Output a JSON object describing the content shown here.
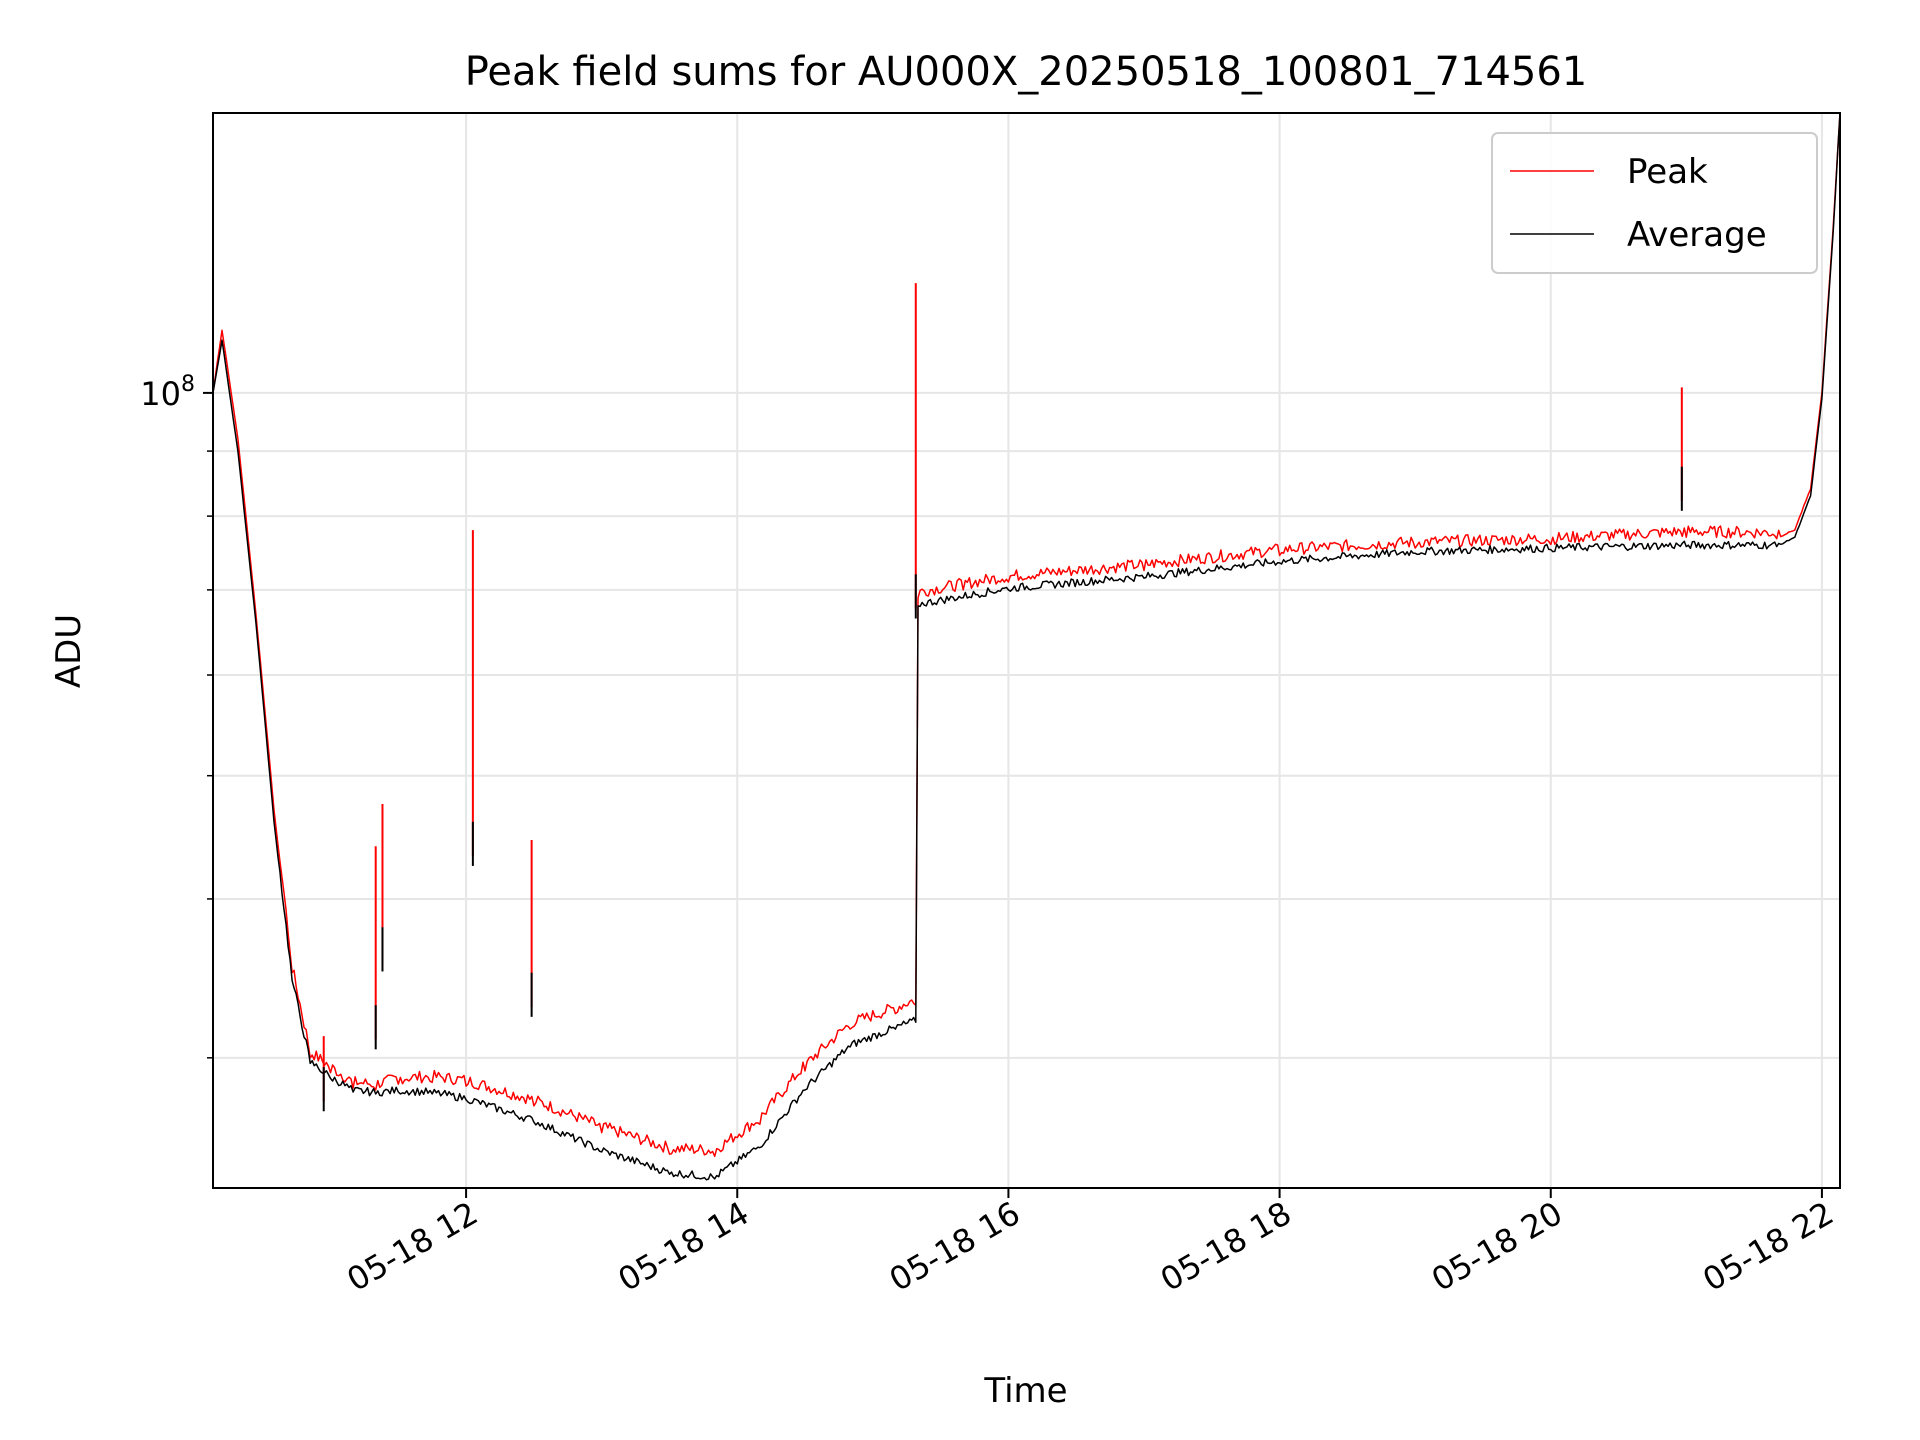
{
  "chart_data": {
    "type": "line",
    "title": "Peak field sums for AU000X_20250518_100801_714561",
    "xlabel": "Time",
    "ylabel": "ADU",
    "yscale": "log",
    "xlim": [
      "2025-05-18 10:08",
      "2025-05-18 22:08"
    ],
    "ylim": [
      23700000,
      166000000
    ],
    "x_ticks": [
      {
        "value": "2025-05-18 12:00",
        "label": "05-18 12"
      },
      {
        "value": "2025-05-18 14:00",
        "label": "05-18 14"
      },
      {
        "value": "2025-05-18 16:00",
        "label": "05-18 16"
      },
      {
        "value": "2025-05-18 18:00",
        "label": "05-18 18"
      },
      {
        "value": "2025-05-18 20:00",
        "label": "05-18 20"
      },
      {
        "value": "2025-05-18 22:00",
        "label": "05-18 22"
      }
    ],
    "y_ticks": [
      {
        "value": 100000000,
        "base": "10",
        "exponent": "8"
      }
    ],
    "y_minor_ticks": [
      30000000,
      40000000,
      50000000,
      60000000,
      70000000,
      80000000,
      90000000,
      200000000
    ],
    "grid": true,
    "legend": "top-right",
    "series": [
      {
        "name": "Peak",
        "color": "#ff0000",
        "x": [
          "2025-05-18 10:08",
          "2025-05-18 10:12",
          "2025-05-18 10:19",
          "2025-05-18 10:27",
          "2025-05-18 10:35",
          "2025-05-18 10:43",
          "2025-05-18 10:51",
          "2025-05-18 11:00",
          "2025-05-18 11:10",
          "2025-05-18 11:20",
          "2025-05-18 11:30",
          "2025-05-18 11:45",
          "2025-05-18 12:00",
          "2025-05-18 12:30",
          "2025-05-18 13:00",
          "2025-05-18 13:30",
          "2025-05-18 13:50",
          "2025-05-18 14:10",
          "2025-05-18 14:30",
          "2025-05-18 14:50",
          "2025-05-18 15:10",
          "2025-05-18 15:19",
          "2025-05-18 15:20",
          "2025-05-18 15:40",
          "2025-05-18 16:00",
          "2025-05-18 17:00",
          "2025-05-18 18:00",
          "2025-05-18 19:00",
          "2025-05-18 20:00",
          "2025-05-18 21:00",
          "2025-05-18 21:40",
          "2025-05-18 21:48",
          "2025-05-18 21:55",
          "2025-05-18 22:00",
          "2025-05-18 22:05",
          "2025-05-18 22:08"
        ],
        "y": [
          100000000,
          112000000,
          92000000,
          67000000,
          47000000,
          35000000,
          30000000,
          29200000,
          28400000,
          28300000,
          28600000,
          28700000,
          28500000,
          27500000,
          26200000,
          25200000,
          25100000,
          26600000,
          29300000,
          31600000,
          32500000,
          33000000,
          69000000,
          70000000,
          71000000,
          72500000,
          74500000,
          75500000,
          76000000,
          77000000,
          76800000,
          78000000,
          84000000,
          100000000,
          135000000,
          166000000
        ]
      },
      {
        "name": "Average",
        "color": "#000000",
        "x": [
          "2025-05-18 10:08",
          "2025-05-18 10:12",
          "2025-05-18 10:19",
          "2025-05-18 10:27",
          "2025-05-18 10:35",
          "2025-05-18 10:43",
          "2025-05-18 10:51",
          "2025-05-18 11:00",
          "2025-05-18 11:10",
          "2025-05-18 11:20",
          "2025-05-18 11:30",
          "2025-05-18 11:45",
          "2025-05-18 12:00",
          "2025-05-18 12:30",
          "2025-05-18 13:00",
          "2025-05-18 13:30",
          "2025-05-18 13:50",
          "2025-05-18 14:10",
          "2025-05-18 14:30",
          "2025-05-18 14:50",
          "2025-05-18 15:10",
          "2025-05-18 15:19",
          "2025-05-18 15:20",
          "2025-05-18 15:40",
          "2025-05-18 16:00",
          "2025-05-18 17:00",
          "2025-05-18 18:00",
          "2025-05-18 19:00",
          "2025-05-18 20:00",
          "2025-05-18 21:00",
          "2025-05-18 21:40",
          "2025-05-18 21:48",
          "2025-05-18 21:55",
          "2025-05-18 22:00",
          "2025-05-18 22:05",
          "2025-05-18 22:08"
        ],
        "y": [
          100000000,
          110000000,
          90000000,
          66000000,
          46000000,
          34500000,
          29700000,
          28900000,
          28200000,
          28100000,
          28200000,
          28100000,
          27800000,
          26700000,
          25300000,
          24300000,
          24100000,
          25500000,
          28300000,
          30600000,
          31600000,
          32000000,
          68000000,
          69000000,
          70000000,
          71500000,
          73500000,
          74800000,
          75300000,
          75700000,
          75700000,
          77000000,
          83000000,
          99000000,
          134000000,
          166000000
        ]
      }
    ],
    "spikes": [
      {
        "x": "2025-05-18 10:57",
        "peak": 31200000,
        "average": 29500000
      },
      {
        "x": "2025-05-18 11:20",
        "peak": 44000000,
        "average": 33000000
      },
      {
        "x": "2025-05-18 11:23",
        "peak": 47500000,
        "average": 38000000
      },
      {
        "x": "2025-05-18 12:03",
        "peak": 78000000,
        "average": 46000000
      },
      {
        "x": "2025-05-18 12:29",
        "peak": 44500000,
        "average": 35000000
      },
      {
        "x": "2025-05-18 15:19",
        "peak": 122000000,
        "average": 72000000
      },
      {
        "x": "2025-05-18 20:58",
        "peak": 101000000,
        "average": 87500000
      }
    ]
  }
}
